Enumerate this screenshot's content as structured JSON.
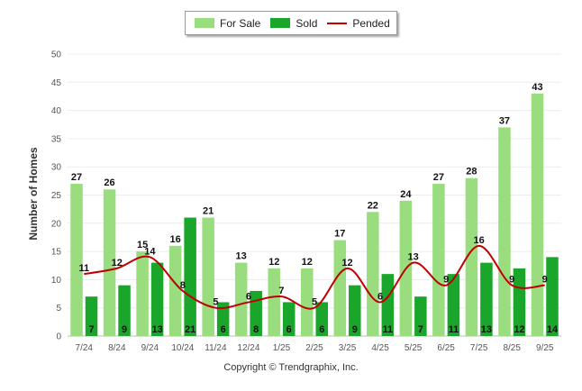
{
  "legend": {
    "for_sale": "For Sale",
    "sold": "Sold",
    "pended": "Pended"
  },
  "colors": {
    "for_sale": "#99dd7f",
    "sold": "#1aa52b",
    "pended": "#c00000"
  },
  "copyright": "Copyright © Trendgraphix, Inc.",
  "chart_data": {
    "type": "bar",
    "ylabel": "Number of Homes",
    "ylim": [
      0,
      50
    ],
    "yticks": [
      0,
      5,
      10,
      15,
      20,
      25,
      30,
      35,
      40,
      45,
      50
    ],
    "grid": true,
    "legend_position": "top",
    "categories": [
      "7/24",
      "8/24",
      "9/24",
      "10/24",
      "11/24",
      "12/24",
      "1/25",
      "2/25",
      "3/25",
      "4/25",
      "5/25",
      "6/25",
      "7/25",
      "8/25",
      "9/25"
    ],
    "series": [
      {
        "name": "For Sale",
        "type": "bar",
        "values": [
          27,
          26,
          15,
          16,
          21,
          13,
          12,
          12,
          17,
          22,
          24,
          27,
          28,
          37,
          43
        ]
      },
      {
        "name": "Sold",
        "type": "bar",
        "values": [
          7,
          9,
          13,
          21,
          6,
          8,
          6,
          6,
          9,
          11,
          7,
          11,
          13,
          12,
          14
        ]
      },
      {
        "name": "Pended",
        "type": "line",
        "values": [
          11,
          12,
          14,
          8,
          5,
          6,
          7,
          5,
          12,
          6,
          13,
          9,
          16,
          9,
          9
        ]
      }
    ]
  }
}
